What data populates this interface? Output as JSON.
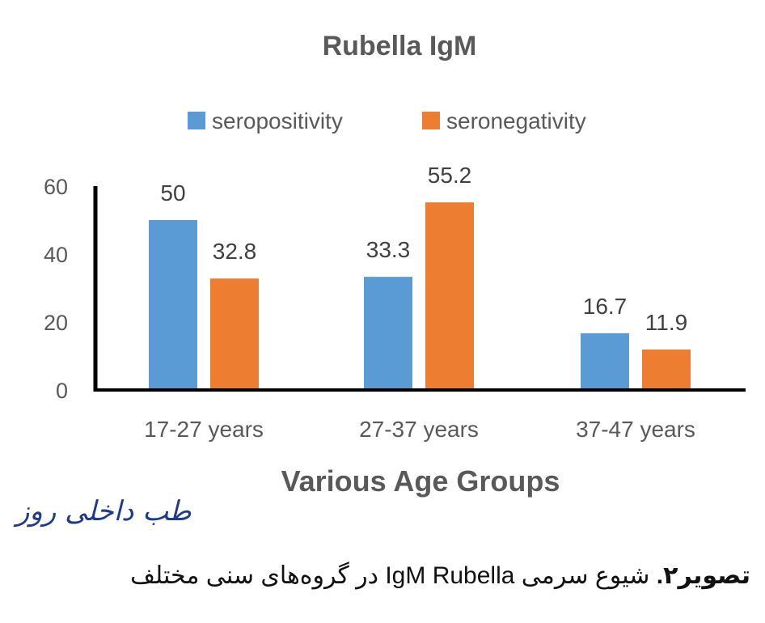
{
  "chart_data": {
    "type": "bar",
    "title": "Rubella IgM",
    "xlabel": "Various Age Groups",
    "ylabel": "",
    "categories": [
      "17-27 years",
      "27-37 years",
      "37-47 years"
    ],
    "series": [
      {
        "name": "seropositivity",
        "values": [
          50,
          33.3,
          16.7
        ],
        "color": "#5b9bd5"
      },
      {
        "name": "seronegativity",
        "values": [
          32.8,
          55.2,
          11.9
        ],
        "color": "#ed7d31"
      }
    ],
    "ylim": [
      0,
      60
    ],
    "yticks": [
      0,
      20,
      40,
      60
    ],
    "value_labels": [
      [
        "50",
        "33.3",
        "16.7"
      ],
      [
        "32.8",
        "55.2",
        "11.9"
      ]
    ],
    "legend": "top",
    "grid": false
  },
  "logo_text": "طب داخلی روز",
  "caption": {
    "bold": "تصویر۲.",
    "rest": " شیوع سرمی IgM Rubella  در گروه‌های سنی مختلف"
  }
}
